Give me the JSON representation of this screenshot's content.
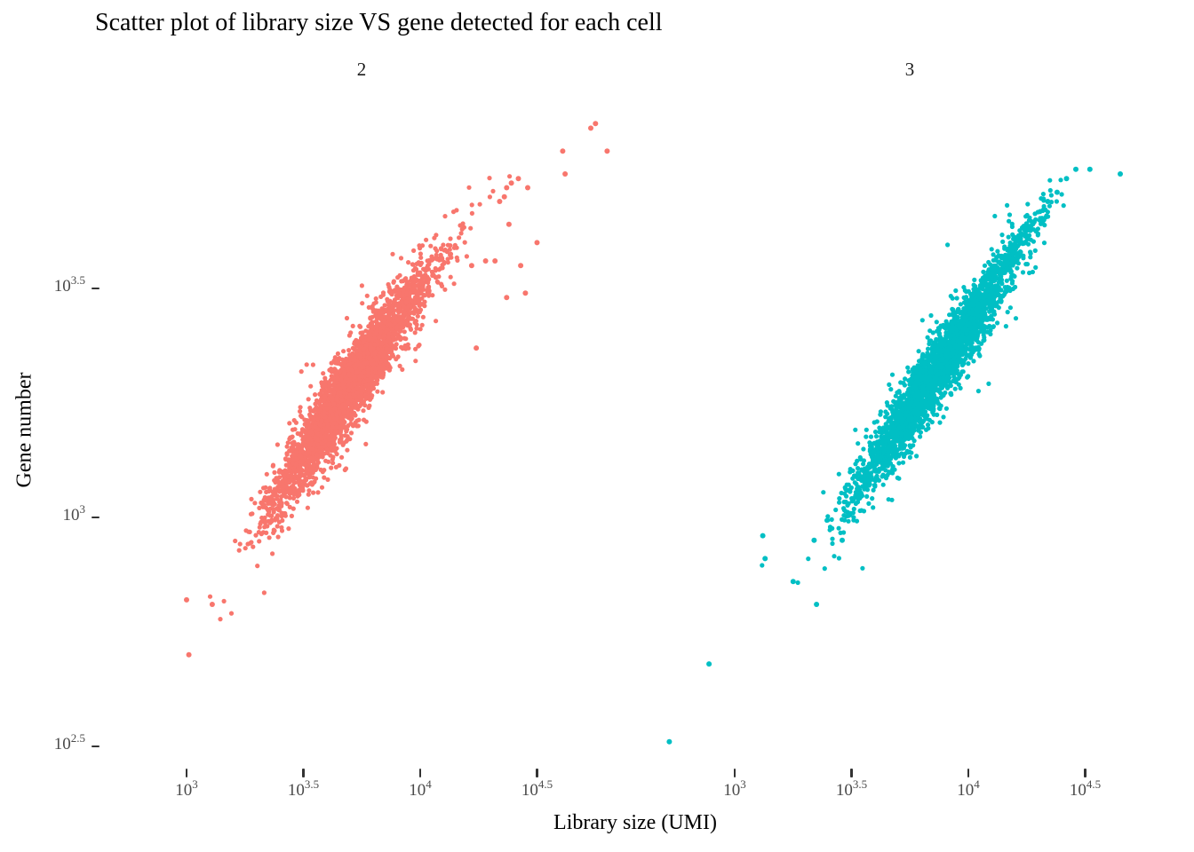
{
  "chart_data": {
    "type": "scatter",
    "title": "Scatter plot of library size VS gene detected for each cell",
    "xlabel": "Library size (UMI)",
    "ylabel": "Gene number",
    "scale": "log10-log10",
    "grid": "off",
    "legend": "none",
    "background_color": "#ffffff",
    "axis_text_color": "#4a4a4a",
    "tick_mark_color": "#333333",
    "xlim_log10": [
      2.63,
      4.87
    ],
    "ylim_log10": [
      2.45,
      3.94
    ],
    "x_ticks": [
      {
        "value": 3,
        "mantissa": "10",
        "exponent": "3"
      },
      {
        "value": 3.5,
        "mantissa": "10",
        "exponent": "3.5"
      },
      {
        "value": 4,
        "mantissa": "10",
        "exponent": "4"
      },
      {
        "value": 4.5,
        "mantissa": "10",
        "exponent": "4.5"
      }
    ],
    "y_ticks": [
      {
        "value": 3.5,
        "mantissa": "10",
        "exponent": "3.5"
      },
      {
        "value": 3,
        "mantissa": "10",
        "exponent": "3"
      },
      {
        "value": 2.5,
        "mantissa": "10",
        "exponent": "2.5"
      }
    ],
    "point_radius_px": 2.6,
    "outlier_radius_px": 3.0,
    "seed": 42,
    "facets": [
      {
        "name": "2",
        "color": "#F8766D",
        "clusters_log10": [
          {
            "n": 2500,
            "cx": 3.7,
            "cy": 3.285,
            "sx": 0.15,
            "sy": 0.118,
            "rho": 0.935
          },
          {
            "n": 260,
            "cx": 3.72,
            "cy": 3.3,
            "sx": 0.225,
            "sy": 0.175,
            "rho": 0.92
          },
          {
            "n": 160,
            "cx": 3.42,
            "cy": 3.07,
            "sx": 0.065,
            "sy": 0.06,
            "rho": 0.85
          },
          {
            "n": 120,
            "cx": 4.03,
            "cy": 3.52,
            "sx": 0.105,
            "sy": 0.075,
            "rho": 0.96
          }
        ],
        "outliers_log10": [
          [
            3.0,
            2.82
          ],
          [
            3.11,
            2.81
          ],
          [
            3.01,
            2.7
          ],
          [
            4.75,
            3.86
          ],
          [
            4.73,
            3.85
          ],
          [
            4.8,
            3.8
          ],
          [
            4.61,
            3.8
          ],
          [
            4.62,
            3.75
          ],
          [
            4.42,
            3.74
          ],
          [
            4.39,
            3.73
          ],
          [
            4.46,
            3.72
          ],
          [
            4.37,
            3.72
          ],
          [
            4.36,
            3.7
          ],
          [
            4.34,
            3.69
          ],
          [
            4.38,
            3.64
          ],
          [
            4.5,
            3.6
          ],
          [
            4.43,
            3.55
          ],
          [
            4.32,
            3.56
          ],
          [
            4.28,
            3.56
          ],
          [
            4.22,
            3.55
          ],
          [
            4.45,
            3.49
          ],
          [
            4.37,
            3.48
          ],
          [
            4.24,
            3.37
          ]
        ]
      },
      {
        "name": "3",
        "color": "#00BFC4",
        "clusters_log10": [
          {
            "n": 2500,
            "cx": 3.88,
            "cy": 3.33,
            "sx": 0.155,
            "sy": 0.12,
            "rho": 0.95
          },
          {
            "n": 220,
            "cx": 3.86,
            "cy": 3.31,
            "sx": 0.22,
            "sy": 0.17,
            "rho": 0.93
          },
          {
            "n": 150,
            "cx": 3.55,
            "cy": 3.08,
            "sx": 0.075,
            "sy": 0.065,
            "rho": 0.88
          },
          {
            "n": 150,
            "cx": 4.2,
            "cy": 3.59,
            "sx": 0.1,
            "sy": 0.065,
            "rho": 0.97
          }
        ],
        "outliers_log10": [
          [
            2.72,
            2.51
          ],
          [
            2.89,
            2.68
          ],
          [
            3.12,
            2.96
          ],
          [
            3.13,
            2.91
          ],
          [
            3.25,
            2.86
          ],
          [
            3.35,
            2.81
          ],
          [
            3.34,
            2.95
          ],
          [
            3.46,
            2.95
          ],
          [
            4.46,
            3.76
          ],
          [
            4.52,
            3.76
          ],
          [
            4.65,
            3.75
          ],
          [
            4.42,
            3.74
          ],
          [
            4.38,
            3.71
          ],
          [
            4.34,
            3.69
          ]
        ]
      }
    ]
  }
}
